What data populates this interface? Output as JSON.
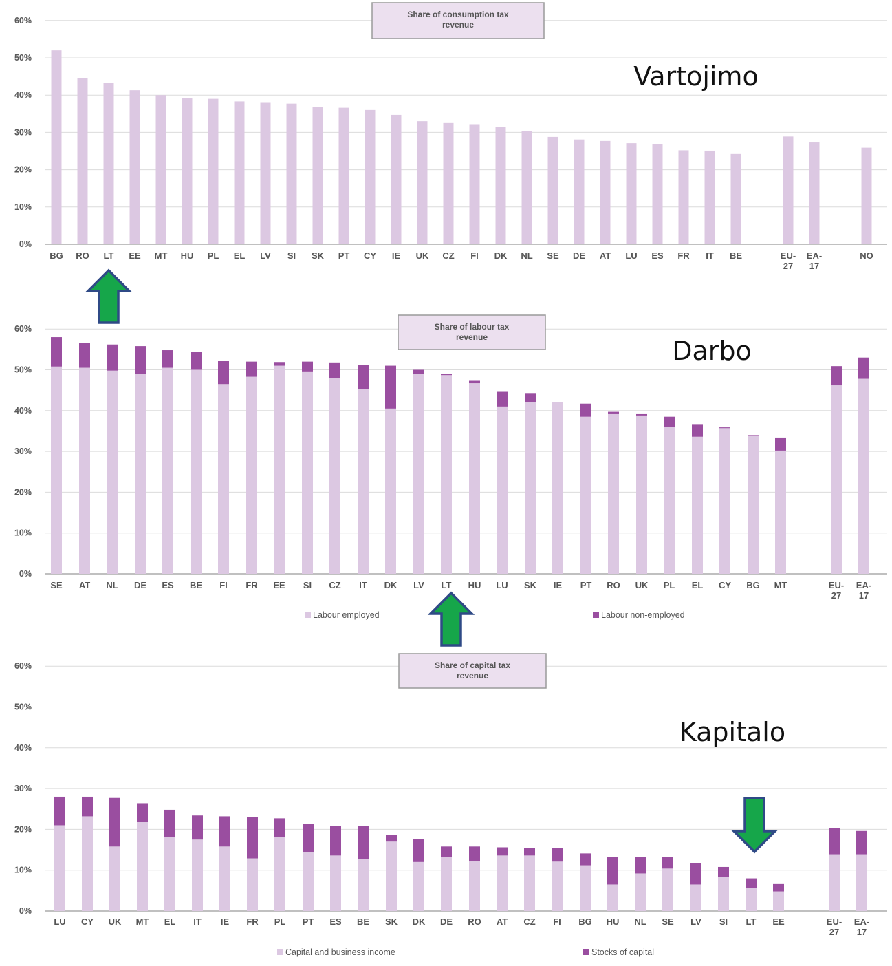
{
  "colors": {
    "light": "#dcc8e2",
    "dark": "#9a4ea0",
    "grid": "#dcdcdc",
    "arrow_fill": "#16a64a",
    "arrow_stroke": "#2f4a86"
  },
  "chart_data": [
    {
      "type": "bar",
      "title": "Share of consumption tax revenue",
      "annotation": "Vartojimo",
      "ylim": [
        0,
        60
      ],
      "yticks": [
        "0%",
        "10%",
        "20%",
        "30%",
        "40%",
        "50%",
        "60%"
      ],
      "categories": [
        "BG",
        "RO",
        "LT",
        "EE",
        "MT",
        "HU",
        "PL",
        "EL",
        "LV",
        "SI",
        "SK",
        "PT",
        "CY",
        "IE",
        "UK",
        "CZ",
        "FI",
        "DK",
        "NL",
        "SE",
        "DE",
        "AT",
        "LU",
        "ES",
        "FR",
        "IT",
        "BE",
        "EU-27",
        "EA-17",
        "NO"
      ],
      "series": [
        {
          "values": [
            52,
            44.5,
            43.3,
            41.3,
            40,
            39.2,
            39,
            38.3,
            38.1,
            37.7,
            36.8,
            36.6,
            36,
            34.7,
            33,
            32.5,
            32.2,
            31.5,
            30.3,
            28.8,
            28.1,
            27.7,
            27.1,
            26.9,
            25.2,
            25.1,
            24.2,
            28.9,
            27.3,
            25.9
          ]
        }
      ],
      "highlight": "LT"
    },
    {
      "type": "bar",
      "title": "Share of labour tax revenue",
      "annotation": "Darbo",
      "ylim": [
        0,
        60
      ],
      "yticks": [
        "0%",
        "10%",
        "20%",
        "30%",
        "40%",
        "50%",
        "60%"
      ],
      "categories": [
        "SE",
        "AT",
        "NL",
        "DE",
        "ES",
        "BE",
        "FI",
        "FR",
        "EE",
        "SI",
        "CZ",
        "IT",
        "DK",
        "LV",
        "LT",
        "HU",
        "LU",
        "SK",
        "IE",
        "PT",
        "RO",
        "UK",
        "PL",
        "EL",
        "CY",
        "BG",
        "MT",
        "EU-27",
        "EA-17"
      ],
      "series": [
        {
          "name": "Labour employed",
          "values": [
            50.8,
            50.5,
            49.8,
            49,
            50.5,
            50,
            46.5,
            48.3,
            51,
            49.6,
            48,
            45.3,
            40.5,
            49,
            48.7,
            46.7,
            41,
            42,
            42,
            38.5,
            39.3,
            38.8,
            36,
            33.6,
            35.7,
            33.8,
            30.2,
            46.2,
            47.8
          ]
        },
        {
          "name": "Labour non-employed",
          "values": [
            7.2,
            6.1,
            6.4,
            6.8,
            4.3,
            4.3,
            5.7,
            3.7,
            0.9,
            2.4,
            3.8,
            5.8,
            10.5,
            1,
            0.2,
            0.6,
            3.6,
            2.3,
            0.1,
            3.2,
            0.4,
            0.5,
            2.5,
            3.1,
            0.2,
            0.2,
            3.2,
            4.7,
            5.2
          ]
        }
      ],
      "legend": [
        "Labour employed",
        "Labour non-employed"
      ],
      "highlight": "LT"
    },
    {
      "type": "bar",
      "title": "Share of capital tax revenue",
      "annotation": "Kapitalo",
      "ylim": [
        0,
        60
      ],
      "yticks": [
        "0%",
        "10%",
        "20%",
        "30%",
        "40%",
        "50%",
        "60%"
      ],
      "categories": [
        "LU",
        "CY",
        "UK",
        "MT",
        "EL",
        "IT",
        "IE",
        "FR",
        "PL",
        "PT",
        "ES",
        "BE",
        "SK",
        "DK",
        "DE",
        "RO",
        "AT",
        "CZ",
        "FI",
        "BG",
        "HU",
        "NL",
        "SE",
        "LV",
        "SI",
        "LT",
        "EE",
        "EU-27",
        "EA-17"
      ],
      "series": [
        {
          "name": "Capital and business income",
          "values": [
            21,
            23.2,
            15.8,
            21.8,
            18.1,
            17.5,
            15.8,
            12.9,
            18.1,
            14.5,
            13.6,
            12.8,
            17,
            12,
            13.3,
            12.3,
            13.6,
            13.6,
            12.1,
            11.2,
            6.5,
            9.2,
            10.4,
            6.5,
            8.3,
            5.7,
            4.8,
            13.9,
            13.9
          ]
        },
        {
          "name": "Stocks of capital",
          "values": [
            7,
            4.8,
            11.9,
            4.6,
            6.7,
            5.9,
            7.4,
            10.2,
            4.6,
            6.9,
            7.3,
            8,
            1.7,
            5.7,
            2.5,
            3.5,
            2,
            1.9,
            3.3,
            2.9,
            6.8,
            4,
            2.9,
            5.2,
            2.5,
            2.3,
            1.8,
            6.4,
            5.7
          ]
        }
      ],
      "legend": [
        "Capital and business income",
        "Stocks of capital"
      ],
      "highlight": "LT"
    }
  ]
}
